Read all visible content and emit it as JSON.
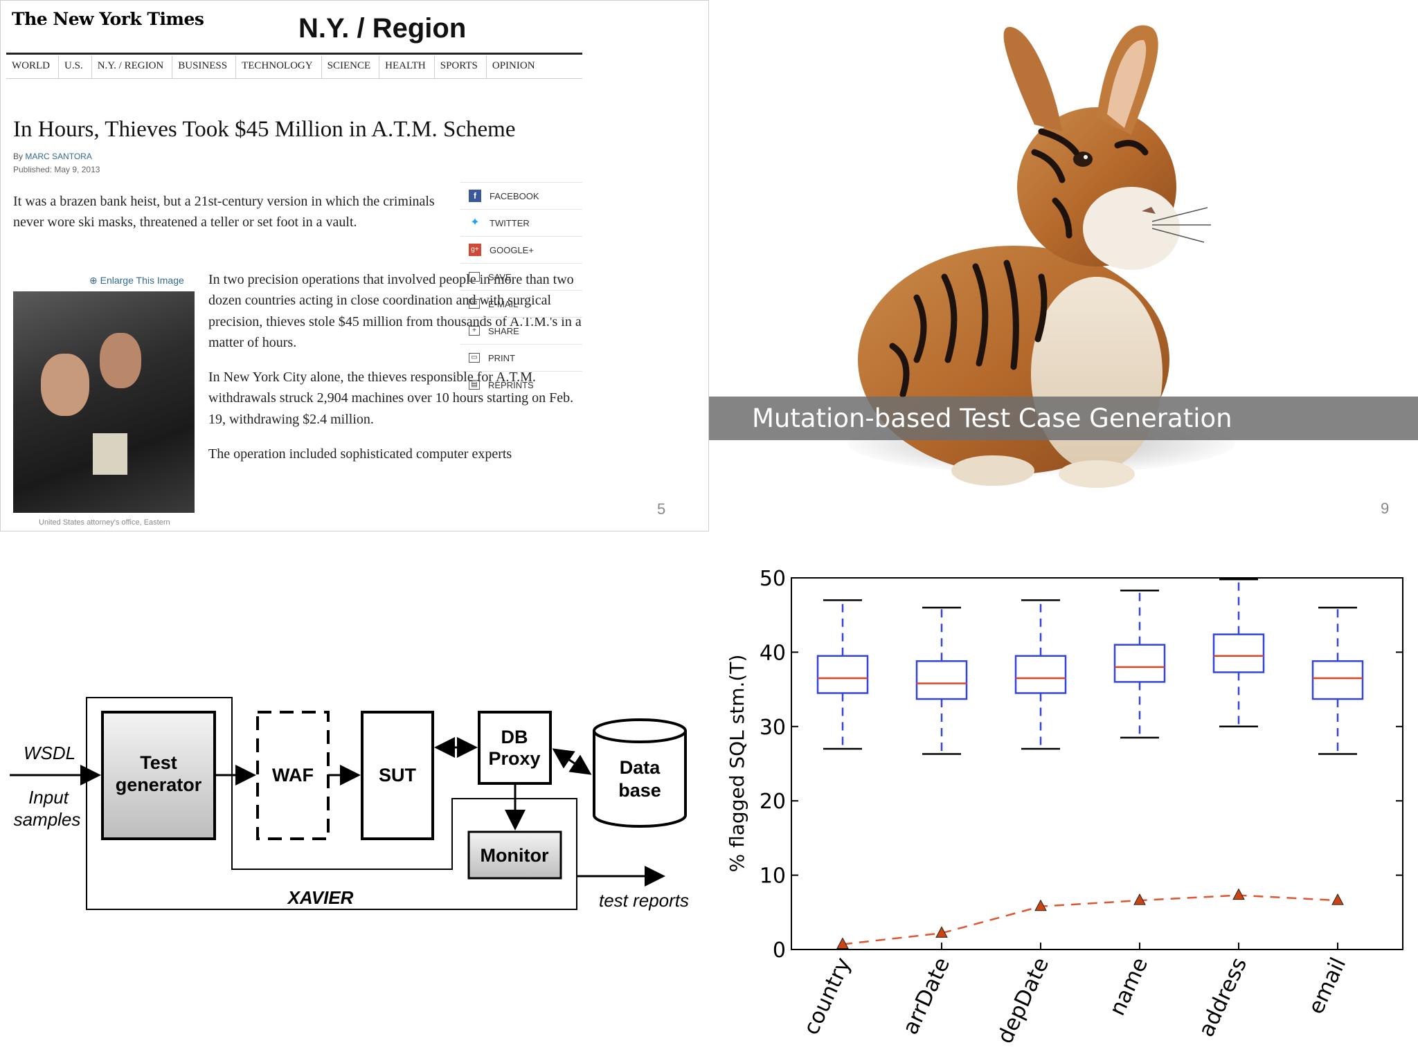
{
  "article_slide": {
    "logo": "The New York Times",
    "section": "N.Y. / Region",
    "nav": [
      "WORLD",
      "U.S.",
      "N.Y. / REGION",
      "BUSINESS",
      "TECHNOLOGY",
      "SCIENCE",
      "HEALTH",
      "SPORTS",
      "OPINION"
    ],
    "headline": "In Hours, Thieves Took $45 Million in A.T.M. Scheme",
    "byline_prefix": "By",
    "author": "MARC SANTORA",
    "published": "Published: May 9, 2013",
    "lead": "It was a brazen bank heist, but a 21st-century version in which the criminals never wore ski masks, threatened a teller or set foot in a vault.",
    "enlarge": "Enlarge This Image",
    "paragraph1": "In two precision operations that involved people in more than two dozen countries acting in close coordination and with surgical precision, thieves stole $45 million from thousands of A.T.M.'s in a matter of hours.",
    "paragraph2": "In New York City alone, the thieves responsible for A.T.M. withdrawals struck 2,904 machines over 10 hours starting on Feb. 19, withdrawing $2.4 million.",
    "paragraph3": "The operation included sophisticated computer experts",
    "photo_caption": "United States attorney's office, Eastern",
    "share": [
      {
        "label": "FACEBOOK",
        "icon": "facebook-icon"
      },
      {
        "label": "TWITTER",
        "icon": "twitter-icon"
      },
      {
        "label": "GOOGLE+",
        "icon": "google-plus-icon"
      },
      {
        "label": "SAVE",
        "icon": "save-icon"
      },
      {
        "label": "E-MAIL",
        "icon": "email-icon"
      },
      {
        "label": "SHARE",
        "icon": "share-icon"
      },
      {
        "label": "PRINT",
        "icon": "print-icon"
      },
      {
        "label": "REPRINTS",
        "icon": "reprints-icon"
      }
    ],
    "slide_number": "5"
  },
  "rabbit_slide": {
    "title": "Mutation-based Test Case Generation",
    "slide_number": "9"
  },
  "diagram": {
    "wsdl": "WSDL",
    "input_samples": "Input samples",
    "test_generator": "Test generator",
    "waf": "WAF",
    "sut": "SUT",
    "db_proxy": "DB Proxy",
    "database": "Data base",
    "monitor": "Monitor",
    "xavier": "XAVIER",
    "test_reports": "test reports"
  },
  "chart_data": {
    "type": "boxplot",
    "ylabel": "% flagged SQL stm.(T)",
    "ylim": [
      0,
      50
    ],
    "yticks": [
      0,
      10,
      20,
      30,
      40,
      50
    ],
    "categories": [
      "country",
      "arrDate",
      "depDate",
      "name",
      "address",
      "email"
    ],
    "boxes": [
      {
        "whisker_low": 27,
        "q1": 34.5,
        "median": 36.5,
        "q3": 39.5,
        "whisker_high": 47
      },
      {
        "whisker_low": 26.3,
        "q1": 33.7,
        "median": 35.8,
        "q3": 38.8,
        "whisker_high": 46
      },
      {
        "whisker_low": 27,
        "q1": 34.5,
        "median": 36.5,
        "q3": 39.5,
        "whisker_high": 47
      },
      {
        "whisker_low": 28.5,
        "q1": 36,
        "median": 38,
        "q3": 41,
        "whisker_high": 48.3
      },
      {
        "whisker_low": 30,
        "q1": 37.3,
        "median": 39.5,
        "q3": 42.4,
        "whisker_high": 49.8
      },
      {
        "whisker_low": 26.3,
        "q1": 33.7,
        "median": 36.5,
        "q3": 38.8,
        "whisker_high": 46
      }
    ],
    "line_values": [
      0.7,
      2.2,
      5.8,
      6.6,
      7.3,
      6.6
    ],
    "colors": {
      "box": "#3344dd",
      "median": "#dd4422",
      "line": "#dd5533",
      "marker": "#cc4411"
    }
  }
}
